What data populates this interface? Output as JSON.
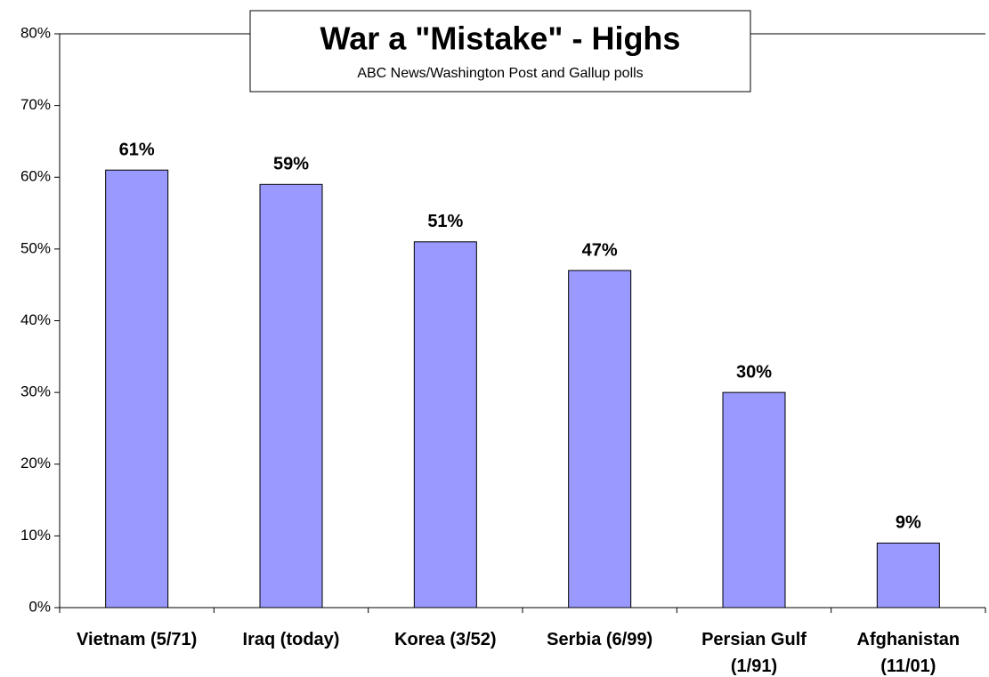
{
  "chart_data": {
    "type": "bar",
    "title": "War a \"Mistake\" - Highs",
    "subtitle": "ABC News/Washington Post and Gallup polls",
    "categories": [
      "Vietnam (5/71)",
      "Iraq (today)",
      "Korea (3/52)",
      "Serbia (6/99)",
      "Persian Gulf (1/91)",
      "Afghanistan (11/01)"
    ],
    "values": [
      61,
      59,
      51,
      47,
      30,
      9
    ],
    "value_labels": [
      "61%",
      "59%",
      "51%",
      "47%",
      "30%",
      "9%"
    ],
    "color": "#9999ff",
    "ylim": [
      0,
      80
    ],
    "yticks": [
      {
        "value": 0,
        "label": "0%"
      },
      {
        "value": 10,
        "label": "10%"
      },
      {
        "value": 20,
        "label": "20%"
      },
      {
        "value": 30,
        "label": "30%"
      },
      {
        "value": 40,
        "label": "40%"
      },
      {
        "value": 50,
        "label": "50%"
      },
      {
        "value": 60,
        "label": "60%"
      },
      {
        "value": 70,
        "label": "70%"
      },
      {
        "value": 80,
        "label": "80%"
      }
    ],
    "grid": false
  }
}
